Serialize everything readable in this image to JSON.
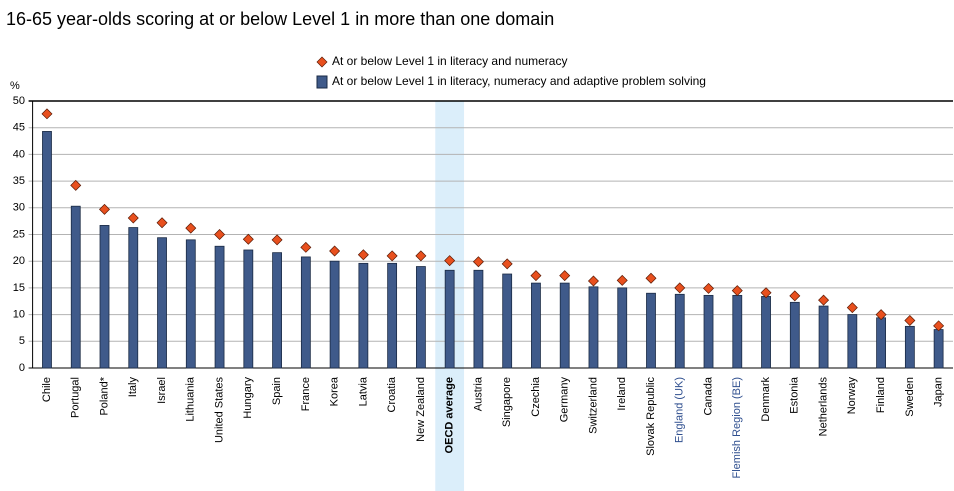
{
  "chart_data": {
    "type": "bar",
    "title": "16-65 year-olds scoring at or below Level 1 in more than one domain",
    "y_label": "%",
    "categories": [
      "Chile",
      "Portugal",
      "Poland*",
      "Italy",
      "Israel",
      "Lithuania",
      "United States",
      "Hungary",
      "Spain",
      "France",
      "Korea",
      "Latvia",
      "Croatia",
      "New Zealand",
      "OECD average",
      "Austria",
      "Singapore",
      "Czechia",
      "Germany",
      "Switzerland",
      "Ireland",
      "Slovak Republic",
      "England (UK)",
      "Canada",
      "Flemish Region (BE)",
      "Denmark",
      "Estonia",
      "Netherlands",
      "Norway",
      "Finland",
      "Sweden",
      "Japan"
    ],
    "series": [
      {
        "name": "At or below Level 1 in literacy and numeracy",
        "color": "#e8501e",
        "marker": "diamond",
        "values": [
          47.6,
          34.2,
          29.7,
          28.1,
          27.2,
          26.2,
          25.0,
          24.1,
          24.0,
          22.6,
          21.9,
          21.2,
          21.0,
          21.0,
          20.1,
          19.9,
          19.5,
          17.3,
          17.3,
          16.3,
          16.4,
          16.8,
          15.0,
          14.9,
          14.5,
          14.1,
          13.5,
          12.7,
          11.3,
          10.0,
          8.9,
          7.9
        ]
      },
      {
        "name": "At or below Level 1 in literacy, numeracy and adaptive problem solving",
        "color": "#3f5a8a",
        "marker": "bar",
        "values": [
          44.3,
          30.3,
          26.7,
          26.3,
          24.4,
          24.0,
          22.8,
          22.1,
          21.6,
          20.8,
          20.0,
          19.6,
          19.6,
          19.0,
          18.3,
          18.3,
          17.6,
          15.9,
          15.9,
          15.2,
          15.0,
          14.0,
          13.8,
          13.6,
          13.6,
          13.4,
          12.3,
          11.6,
          10.0,
          9.4,
          7.8,
          7.2
        ]
      }
    ],
    "ylim": [
      0,
      50
    ],
    "yticks": [
      0,
      5,
      10,
      15,
      20,
      25,
      30,
      35,
      40,
      45,
      50
    ],
    "grid": true,
    "highlight": [
      14
    ],
    "blue_labels": [
      22,
      24
    ],
    "legend": "top"
  }
}
